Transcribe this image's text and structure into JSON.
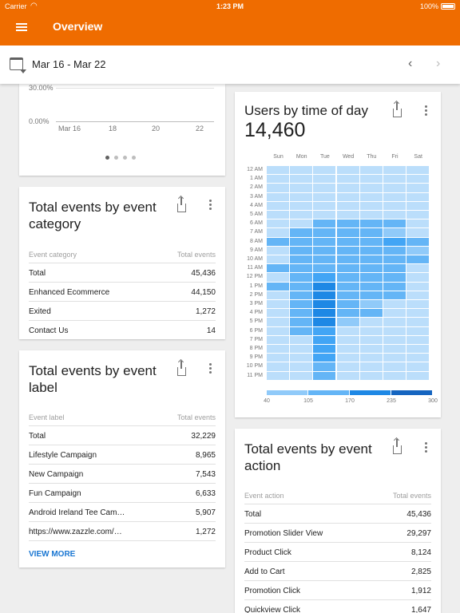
{
  "status_bar": {
    "carrier": "Carrier",
    "time": "1:23 PM",
    "battery": "100%"
  },
  "app_bar": {
    "title": "Overview"
  },
  "date_bar": {
    "range": "Mar 16 - Mar 22"
  },
  "line_card": {
    "y_ticks": [
      "30.00%",
      "0.00%"
    ],
    "x_ticks": [
      "Mar 16",
      "18",
      "20",
      "22"
    ],
    "pages": 4,
    "active_page": 0
  },
  "event_category_card": {
    "title": "Total events by event category",
    "col1": "Event category",
    "col2": "Total events",
    "rows": [
      {
        "label": "Total",
        "value": "45,436"
      },
      {
        "label": "Enhanced Ecommerce",
        "value": "44,150"
      },
      {
        "label": "Exited",
        "value": "1,272"
      },
      {
        "label": "Contact Us",
        "value": "14"
      }
    ]
  },
  "event_label_card": {
    "title": "Total events by event label",
    "col1": "Event label",
    "col2": "Total events",
    "rows": [
      {
        "label": "Total",
        "value": "32,229"
      },
      {
        "label": "Lifestyle Campaign",
        "value": "8,965"
      },
      {
        "label": "New Campaign",
        "value": "7,543"
      },
      {
        "label": "Fun Campaign",
        "value": "6,633"
      },
      {
        "label": "Android Ireland Tee Cam…",
        "value": "5,907"
      },
      {
        "label": "https://www.zazzle.com/…",
        "value": "1,272"
      }
    ],
    "view_more": "VIEW MORE"
  },
  "users_time_card": {
    "title": "Users by time of day",
    "value": "14,460",
    "days": [
      "Sun",
      "Mon",
      "Tue",
      "Wed",
      "Thu",
      "Fri",
      "Sat"
    ],
    "hours": [
      "12 AM",
      "1 AM",
      "2 AM",
      "3 AM",
      "4 AM",
      "5 AM",
      "6 AM",
      "7 AM",
      "8 AM",
      "9 AM",
      "10 AM",
      "11 AM",
      "12 PM",
      "1 PM",
      "2 PM",
      "3 PM",
      "4 PM",
      "5 PM",
      "6 PM",
      "7 PM",
      "8 PM",
      "9 PM",
      "10 PM",
      "11 PM"
    ],
    "legend": [
      "40",
      "105",
      "170",
      "235",
      "300"
    ],
    "colors": [
      "#bbdefb",
      "#90caf9",
      "#64b5f6",
      "#42a5f5",
      "#1e88e5",
      "#1565c0"
    ],
    "levels": [
      [
        0,
        0,
        0,
        0,
        0,
        0,
        0
      ],
      [
        0,
        0,
        0,
        0,
        0,
        0,
        0
      ],
      [
        0,
        0,
        0,
        0,
        0,
        0,
        0
      ],
      [
        0,
        0,
        0,
        0,
        0,
        0,
        0
      ],
      [
        0,
        0,
        0,
        0,
        0,
        0,
        0
      ],
      [
        0,
        0,
        0,
        0,
        0,
        0,
        0
      ],
      [
        0,
        0,
        2,
        2,
        2,
        2,
        0
      ],
      [
        0,
        2,
        2,
        2,
        2,
        1,
        0
      ],
      [
        2,
        2,
        2,
        2,
        2,
        3,
        2
      ],
      [
        0,
        2,
        2,
        2,
        2,
        2,
        1
      ],
      [
        0,
        2,
        2,
        2,
        2,
        2,
        2
      ],
      [
        2,
        2,
        2,
        2,
        2,
        2,
        0
      ],
      [
        0,
        2,
        3,
        2,
        2,
        2,
        0
      ],
      [
        2,
        2,
        4,
        2,
        2,
        2,
        0
      ],
      [
        0,
        2,
        4,
        2,
        2,
        2,
        0
      ],
      [
        0,
        2,
        4,
        2,
        1,
        0,
        0
      ],
      [
        0,
        2,
        4,
        2,
        2,
        0,
        0
      ],
      [
        0,
        2,
        4,
        1,
        0,
        0,
        0
      ],
      [
        0,
        2,
        3,
        0,
        0,
        0,
        0
      ],
      [
        0,
        0,
        3,
        0,
        0,
        0,
        0
      ],
      [
        0,
        0,
        3,
        0,
        0,
        0,
        0
      ],
      [
        0,
        0,
        3,
        0,
        0,
        0,
        0
      ],
      [
        0,
        0,
        2,
        0,
        0,
        0,
        0
      ],
      [
        0,
        0,
        2,
        0,
        0,
        0,
        0
      ]
    ]
  },
  "event_action_card": {
    "title": "Total events by event action",
    "col1": "Event action",
    "col2": "Total events",
    "rows": [
      {
        "label": "Total",
        "value": "45,436"
      },
      {
        "label": "Promotion Slider View",
        "value": "29,297"
      },
      {
        "label": "Product Click",
        "value": "8,124"
      },
      {
        "label": "Add to Cart",
        "value": "2,825"
      },
      {
        "label": "Promotion Click",
        "value": "1,912"
      },
      {
        "label": "Quickview Click",
        "value": "1,647"
      }
    ]
  }
}
